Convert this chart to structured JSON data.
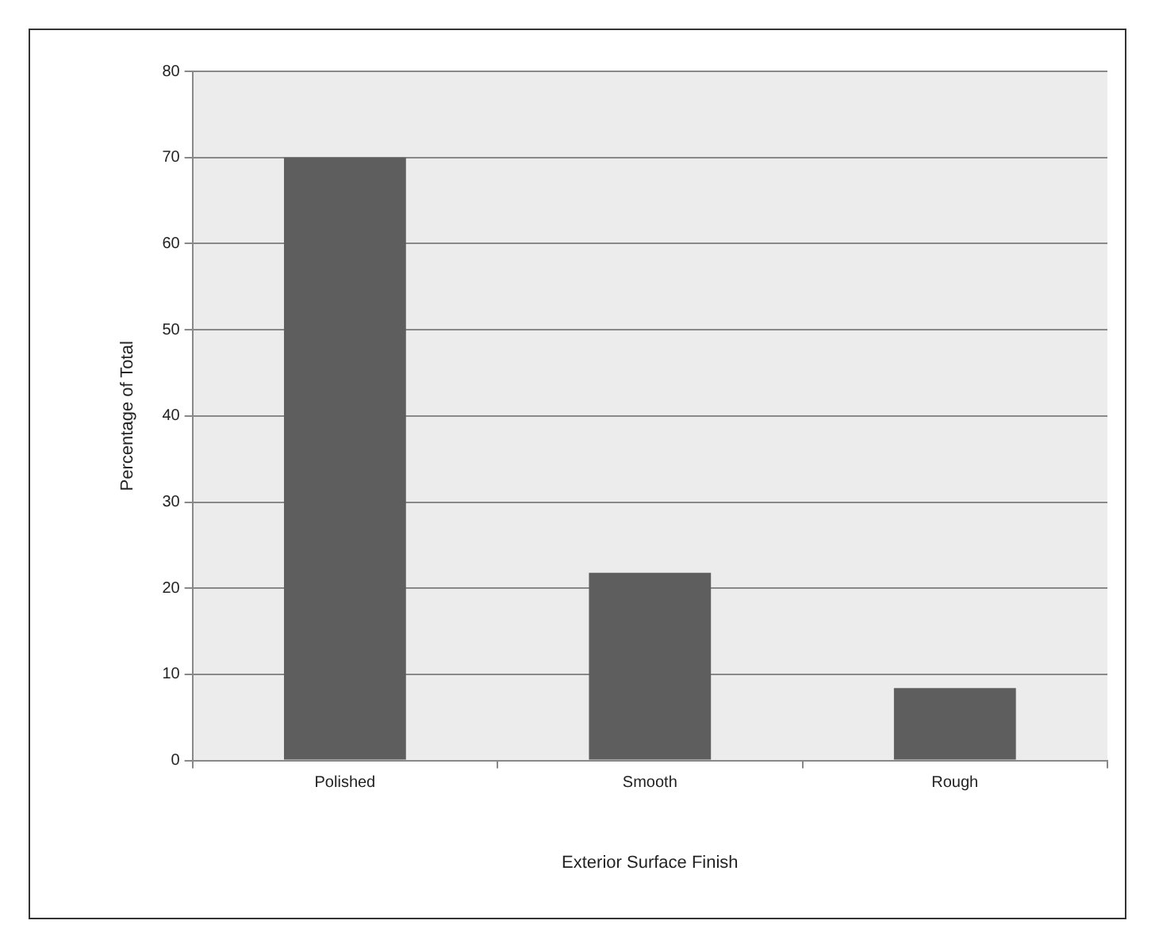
{
  "chart_data": {
    "type": "bar",
    "xlabel": "Exterior Surface Finish",
    "ylabel": "Percentage of Total",
    "categories": [
      "Polished",
      "Smooth",
      "Rough"
    ],
    "values": [
      70,
      21.8,
      8.4
    ],
    "color": "#5e5e5e",
    "ylim": [
      0,
      80
    ],
    "yticks": [
      0,
      10,
      20,
      30,
      40,
      50,
      60,
      70,
      80
    ],
    "grid": "y",
    "legend": false
  }
}
